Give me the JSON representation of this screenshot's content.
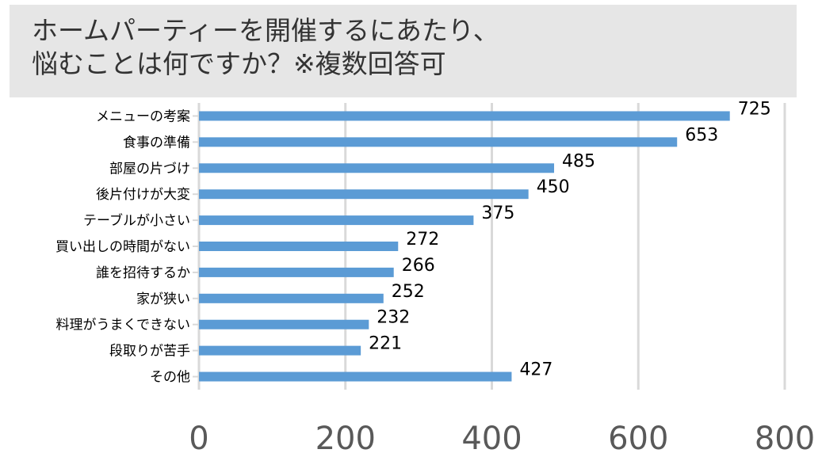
{
  "title_lines": [
    "ホームパーティーを開催するにあたり、",
    "悩むことは何ですか？※複数回答可"
  ],
  "colors": {
    "bar": "#5b9bd5",
    "grid": "#d9d9d9",
    "tick_text": "#595959",
    "label_text": "#000000",
    "title_bg": "#e6e6e6"
  },
  "chart_data": {
    "type": "bar",
    "orientation": "horizontal",
    "title": "ホームパーティーを開催するにあたり、悩むことは何ですか？※複数回答可",
    "categories": [
      "メニューの考案",
      "食事の準備",
      "部屋の片づけ",
      "後片付けが大変",
      "テーブルが小さい",
      "買い出しの時間がない",
      "誰を招待するか",
      "家が狭い",
      "料理がうまくできない",
      "段取りが苦手",
      "その他"
    ],
    "values": [
      725,
      653,
      485,
      450,
      375,
      272,
      266,
      252,
      232,
      221,
      427
    ],
    "xlim": [
      0,
      800
    ],
    "xticks": [
      0,
      200,
      400,
      600,
      800
    ],
    "grid": true,
    "data_labels": true
  }
}
